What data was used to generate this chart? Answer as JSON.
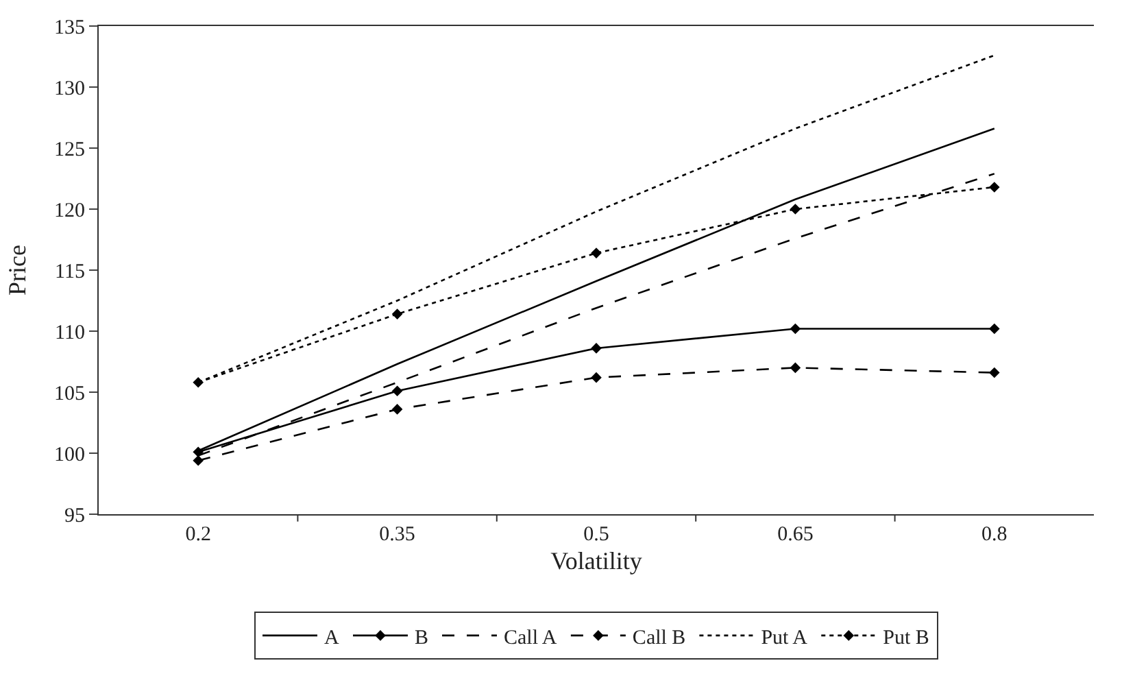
{
  "chart_data": {
    "type": "line",
    "xlabel": "Volatility",
    "ylabel": "Price",
    "categories": [
      "0.2",
      "0.35",
      "0.5",
      "0.65",
      "0.8"
    ],
    "series": [
      {
        "name": "A",
        "color": "#000000",
        "line_style": "solid",
        "marker": "none",
        "values": [
          100.2,
          107.3,
          114.1,
          120.8,
          126.6
        ]
      },
      {
        "name": "B",
        "color": "#000000",
        "line_style": "solid",
        "marker": "diamond",
        "values": [
          100.1,
          105.1,
          108.6,
          110.2,
          110.2
        ]
      },
      {
        "name": "Call A",
        "color": "#000000",
        "line_style": "dashed",
        "marker": "none",
        "values": [
          99.8,
          105.8,
          111.9,
          117.6,
          122.9
        ]
      },
      {
        "name": "Call B",
        "color": "#000000",
        "line_style": "dashed",
        "marker": "diamond",
        "values": [
          99.4,
          103.6,
          106.2,
          107.0,
          106.6
        ]
      },
      {
        "name": "Put A",
        "color": "#000000",
        "line_style": "dotted",
        "marker": "none",
        "values": [
          105.8,
          112.5,
          119.8,
          126.6,
          132.6
        ]
      },
      {
        "name": "Put B",
        "color": "#000000",
        "line_style": "dotted",
        "marker": "diamond",
        "values": [
          105.8,
          111.4,
          116.4,
          120.0,
          121.8
        ]
      }
    ],
    "ylim": [
      95,
      135
    ],
    "yticks": [
      95,
      100,
      105,
      110,
      115,
      120,
      125,
      130,
      135
    ],
    "legend": "bottom"
  }
}
